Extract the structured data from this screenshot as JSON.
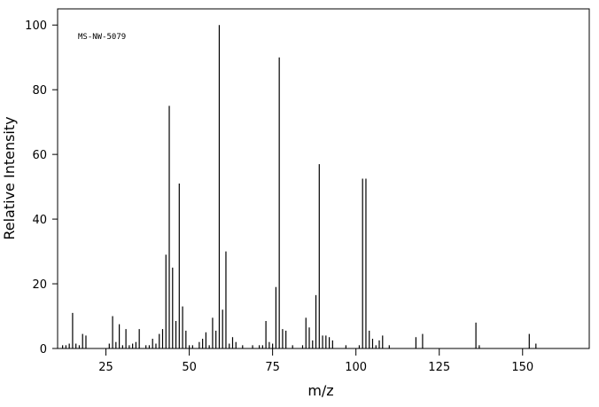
{
  "chart_data": {
    "type": "stick",
    "title": "MS-NW-5079",
    "x_label": "m/z",
    "y_label": "Relative Intensity",
    "color": "#000000",
    "xlim": [
      10.5,
      170
    ],
    "ylim": [
      0,
      105
    ],
    "xticks": [
      25,
      50,
      75,
      100,
      125,
      150
    ],
    "yticks": [
      0,
      20,
      40,
      60,
      80,
      100
    ],
    "x": [
      12,
      13,
      14,
      15,
      16,
      17,
      18,
      19,
      26,
      27,
      28,
      29,
      30,
      31,
      32,
      33,
      34,
      35,
      37,
      38,
      39,
      40,
      41,
      42,
      43,
      44,
      45,
      46,
      47,
      48,
      49,
      50,
      51,
      53,
      54,
      55,
      56,
      57,
      58,
      59,
      60,
      61,
      62,
      63,
      64,
      66,
      69,
      71,
      72,
      73,
      74,
      75,
      76,
      77,
      78,
      79,
      81,
      84,
      85,
      86,
      87,
      88,
      89,
      90,
      91,
      92,
      93,
      97,
      101,
      102,
      103,
      104,
      105,
      106,
      107,
      108,
      110,
      118,
      120,
      136,
      137,
      152,
      154
    ],
    "values": [
      1,
      1,
      1.5,
      11,
      1.5,
      1,
      4.5,
      4,
      1.5,
      10,
      2,
      7.5,
      1,
      6,
      1,
      1.5,
      2,
      6,
      1,
      1,
      3,
      1.5,
      4.5,
      6,
      29,
      75,
      25,
      8.5,
      51,
      13,
      5.5,
      1,
      1,
      2,
      3,
      5,
      1,
      9.5,
      5.5,
      100,
      12,
      30,
      1.5,
      3.5,
      2,
      1,
      1,
      1,
      1,
      8.5,
      2,
      1.5,
      19,
      90,
      6,
      5.5,
      1,
      1,
      9.5,
      6.5,
      2.5,
      16.5,
      57,
      4,
      4,
      3.5,
      2.5,
      1,
      1,
      52.5,
      52.5,
      5.5,
      3,
      1,
      2.5,
      4,
      1,
      3.5,
      4.5,
      8,
      1,
      4.5,
      1.5
    ]
  }
}
